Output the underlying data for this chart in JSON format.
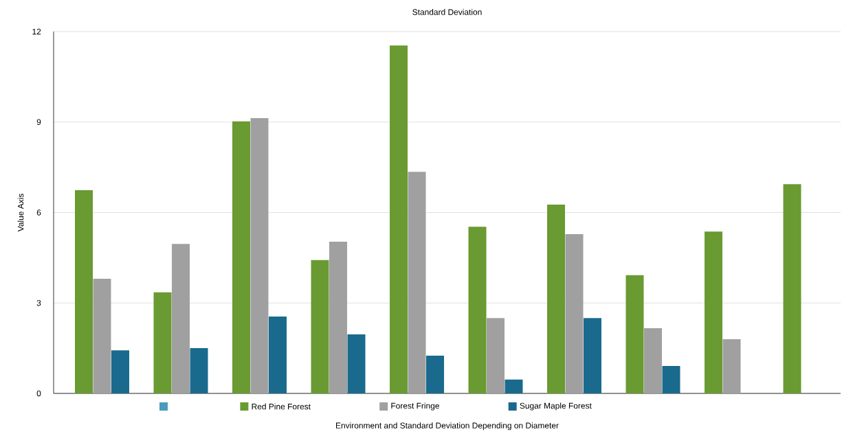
{
  "chart_data": {
    "type": "bar",
    "title": "Standard Deviation",
    "xlabel": "Environment and Standard Deviation Depending on Diameter",
    "ylabel": "Value Axis",
    "categories": [
      null,
      null,
      null,
      null,
      null,
      null,
      null,
      null,
      null,
      null
    ],
    "series": [
      {
        "color": "#4a9bbd",
        "values": [
          null,
          null,
          null,
          null,
          null,
          null,
          null,
          null,
          null,
          null
        ]
      },
      {
        "name": "Red Pine Forest",
        "color": "#6a9a32",
        "values": [
          6.74,
          3.35,
          9.02,
          4.42,
          11.54,
          5.53,
          6.26,
          3.92,
          5.37,
          6.94
        ]
      },
      {
        "name": "Forest Fringe",
        "color": "#a0a0a0",
        "values": [
          3.8,
          4.96,
          9.13,
          5.03,
          7.35,
          2.5,
          5.28,
          2.16,
          1.8,
          null
        ]
      },
      {
        "name": "Sugar Maple Forest",
        "color": "#1a6a8e",
        "values": [
          1.43,
          1.5,
          2.55,
          1.96,
          1.25,
          0.46,
          2.5,
          0.91,
          null,
          null
        ]
      }
    ],
    "ylim": [
      0,
      12
    ],
    "yticks": [
      0,
      3,
      6,
      9,
      12
    ],
    "grid": "y",
    "legend": "bottom"
  }
}
